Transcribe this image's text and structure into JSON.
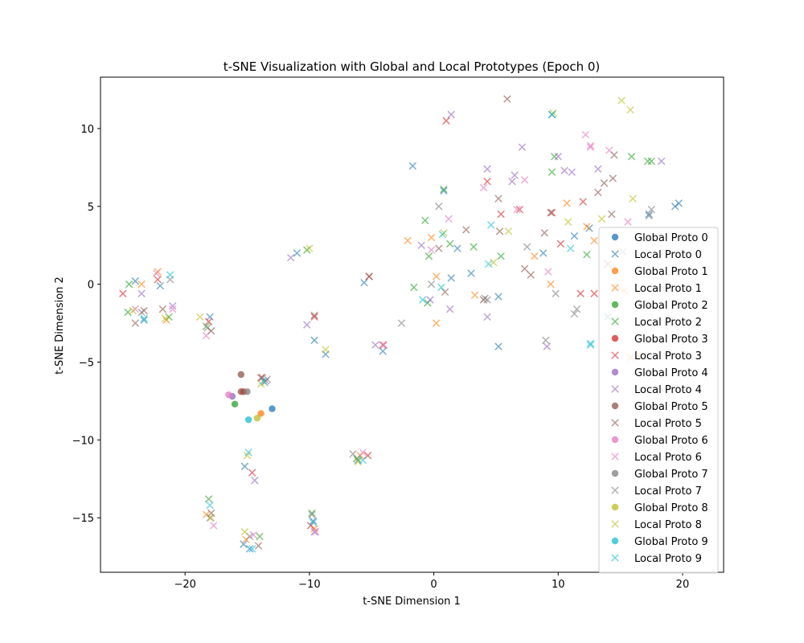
{
  "chart_data": {
    "type": "scatter",
    "title": "t-SNE Visualization with Global and Local Prototypes (Epoch 0)",
    "xlabel": "t-SNE Dimension 1",
    "ylabel": "t-SNE Dimension 2",
    "xlim": [
      -26.8,
      23.3
    ],
    "ylim": [
      -18.5,
      13.3
    ],
    "xticks": [
      -20,
      -10,
      0,
      10,
      20
    ],
    "yticks": [
      -15,
      -10,
      -5,
      0,
      5,
      10
    ],
    "grid": false,
    "legend_position": "right",
    "series": [
      {
        "name": "Global Proto 0",
        "marker": "circle",
        "color": "#1f77b4",
        "points": [
          [
            -13.0,
            -8.0
          ]
        ]
      },
      {
        "name": "Local Proto 0",
        "marker": "x",
        "color": "#1f77b4",
        "points": [
          [
            -24.0,
            0.2
          ],
          [
            -22.0,
            -0.1
          ],
          [
            -23.3,
            -2.3
          ],
          [
            -18.0,
            -2.1
          ],
          [
            -11.0,
            2.0
          ],
          [
            -9.6,
            -3.6
          ],
          [
            -8.7,
            -4.5
          ],
          [
            -4.1,
            -4.3
          ],
          [
            -5.6,
            0.1
          ],
          [
            -1.7,
            7.6
          ],
          [
            0.8,
            6.0
          ],
          [
            1.4,
            0.4
          ],
          [
            1.9,
            2.3
          ],
          [
            3.0,
            0.7
          ],
          [
            5.2,
            -0.8
          ],
          [
            5.2,
            -4.0
          ],
          [
            9.5,
            10.9
          ],
          [
            8.8,
            2.0
          ],
          [
            11.3,
            3.1
          ],
          [
            12.5,
            3.6
          ],
          [
            19.4,
            5.0
          ],
          [
            19.7,
            5.2
          ],
          [
            17.3,
            4.5
          ],
          [
            14.0,
            -2.1
          ],
          [
            -14.8,
            -17.0
          ],
          [
            -15.3,
            -16.7
          ],
          [
            -9.7,
            -15.2
          ],
          [
            -15.2,
            -11.7
          ],
          [
            -6.1,
            -11.3
          ]
        ]
      },
      {
        "name": "Global Proto 1",
        "marker": "circle",
        "color": "#ff7f0e",
        "points": [
          [
            -13.9,
            -8.3
          ]
        ]
      },
      {
        "name": "Local Proto 1",
        "marker": "x",
        "color": "#ff7f0e",
        "points": [
          [
            -22.2,
            0.8
          ],
          [
            -21.5,
            -2.3
          ],
          [
            -23.5,
            0.0
          ],
          [
            -2.1,
            2.8
          ],
          [
            -0.2,
            3.0
          ],
          [
            0.2,
            0.5
          ],
          [
            0.2,
            -2.5
          ],
          [
            3.3,
            -0.7
          ],
          [
            8.1,
            1.8
          ],
          [
            9.4,
            0.0
          ],
          [
            10.7,
            5.2
          ],
          [
            12.3,
            3.7
          ],
          [
            12.9,
            2.8
          ],
          [
            15.3,
            -0.4
          ],
          [
            16.6,
            -4.6
          ],
          [
            15.8,
            -4.7
          ],
          [
            -18.3,
            -14.8
          ],
          [
            -15.1,
            -16.4
          ],
          [
            -9.6,
            -15.7
          ],
          [
            -5.9,
            -11.0
          ]
        ]
      },
      {
        "name": "Global Proto 2",
        "marker": "circle",
        "color": "#2ca02c",
        "points": [
          [
            -16.0,
            -7.7
          ]
        ]
      },
      {
        "name": "Local Proto 2",
        "marker": "x",
        "color": "#2ca02c",
        "points": [
          [
            -24.5,
            0.0
          ],
          [
            -24.6,
            -1.8
          ],
          [
            -21.3,
            -2.1
          ],
          [
            -18.3,
            -2.7
          ],
          [
            -10.2,
            2.2
          ],
          [
            -1.6,
            -0.2
          ],
          [
            -0.7,
            4.1
          ],
          [
            0.8,
            6.1
          ],
          [
            1.3,
            2.6
          ],
          [
            3.2,
            2.4
          ],
          [
            5.4,
            1.8
          ],
          [
            9.5,
            7.2
          ],
          [
            9.7,
            8.2
          ],
          [
            12.3,
            1.9
          ],
          [
            15.9,
            8.2
          ],
          [
            17.2,
            7.9
          ],
          [
            17.5,
            7.9
          ],
          [
            -18.1,
            -13.8
          ],
          [
            -14.0,
            -16.2
          ],
          [
            -9.8,
            -14.7
          ],
          [
            -6.2,
            -11.2
          ],
          [
            -13.6,
            -6.3
          ],
          [
            -0.5,
            -1.2
          ],
          [
            -0.4,
            1.8
          ]
        ]
      },
      {
        "name": "Global Proto 3",
        "marker": "circle",
        "color": "#d62728",
        "points": [
          [
            -15.3,
            -6.9
          ]
        ]
      },
      {
        "name": "Local Proto 3",
        "marker": "x",
        "color": "#d62728",
        "points": [
          [
            -25.0,
            -0.6
          ],
          [
            -22.2,
            0.3
          ],
          [
            -18.1,
            -2.4
          ],
          [
            -9.6,
            -2.1
          ],
          [
            -5.2,
            0.5
          ],
          [
            -4.1,
            -3.9
          ],
          [
            1.0,
            10.5
          ],
          [
            4.3,
            6.6
          ],
          [
            5.4,
            4.5
          ],
          [
            6.9,
            4.8
          ],
          [
            9.5,
            4.6
          ],
          [
            10.2,
            2.6
          ],
          [
            11.8,
            -0.6
          ],
          [
            12.0,
            5.3
          ],
          [
            14.0,
            1.3
          ],
          [
            12.9,
            -0.6
          ],
          [
            -14.6,
            -12.1
          ],
          [
            -9.9,
            -15.5
          ],
          [
            -5.3,
            -11.0
          ],
          [
            -13.8,
            -6.0
          ]
        ]
      },
      {
        "name": "Global Proto 4",
        "marker": "circle",
        "color": "#9467bd",
        "points": [
          [
            -16.2,
            -7.2
          ]
        ]
      },
      {
        "name": "Local Proto 4",
        "marker": "x",
        "color": "#9467bd",
        "points": [
          [
            -23.5,
            -0.6
          ],
          [
            -21.0,
            -1.4
          ],
          [
            -11.5,
            1.7
          ],
          [
            -10.2,
            -2.6
          ],
          [
            -4.7,
            -3.9
          ],
          [
            -1.0,
            2.5
          ],
          [
            -0.3,
            -1.0
          ],
          [
            1.4,
            10.9
          ],
          [
            4.3,
            7.4
          ],
          [
            4.3,
            -2.1
          ],
          [
            6.3,
            6.6
          ],
          [
            6.5,
            7.0
          ],
          [
            7.1,
            8.8
          ],
          [
            9.1,
            -4.0
          ],
          [
            10.0,
            8.2
          ],
          [
            10.5,
            7.3
          ],
          [
            11.1,
            7.2
          ],
          [
            13.2,
            7.4
          ],
          [
            18.3,
            7.9
          ],
          [
            -14.4,
            -12.6
          ],
          [
            -9.6,
            -15.9
          ],
          [
            -13.5,
            -6.2
          ],
          [
            1.3,
            -1.6
          ]
        ]
      },
      {
        "name": "Global Proto 5",
        "marker": "circle",
        "color": "#8c564b",
        "points": [
          [
            -15.5,
            -5.8
          ],
          [
            -15.5,
            -6.9
          ]
        ]
      },
      {
        "name": "Local Proto 5",
        "marker": "x",
        "color": "#8c564b",
        "points": [
          [
            -24.0,
            -2.5
          ],
          [
            -23.3,
            -1.7
          ],
          [
            -21.8,
            -1.6
          ],
          [
            -17.9,
            -3.0
          ],
          [
            -9.6,
            -2.0
          ],
          [
            -5.2,
            0.5
          ],
          [
            0.4,
            2.3
          ],
          [
            0.9,
            -0.5
          ],
          [
            2.6,
            3.5
          ],
          [
            5.2,
            5.5
          ],
          [
            5.3,
            3.4
          ],
          [
            5.9,
            11.9
          ],
          [
            7.3,
            1.0
          ],
          [
            7.8,
            0.6
          ],
          [
            8.9,
            3.3
          ],
          [
            9.4,
            4.6
          ],
          [
            13.2,
            5.9
          ],
          [
            13.7,
            6.5
          ],
          [
            14.3,
            4.5
          ],
          [
            14.4,
            6.8
          ],
          [
            14.5,
            8.3
          ],
          [
            -17.9,
            -14.7
          ],
          [
            -14.1,
            -16.8
          ],
          [
            -13.9,
            -6.0
          ],
          [
            4.0,
            -1.0
          ]
        ]
      },
      {
        "name": "Global Proto 6",
        "marker": "circle",
        "color": "#e377c2",
        "points": [
          [
            -16.5,
            -7.1
          ]
        ]
      },
      {
        "name": "Local Proto 6",
        "marker": "x",
        "color": "#e377c2",
        "points": [
          [
            -24.0,
            -1.6
          ],
          [
            -22.3,
            0.7
          ],
          [
            -21.0,
            -1.6
          ],
          [
            -18.3,
            -3.3
          ],
          [
            -4.0,
            -3.9
          ],
          [
            -0.2,
            2.2
          ],
          [
            1.2,
            4.2
          ],
          [
            4.0,
            6.2
          ],
          [
            6.7,
            4.8
          ],
          [
            7.3,
            6.7
          ],
          [
            9.2,
            0.8
          ],
          [
            12.2,
            9.6
          ],
          [
            12.6,
            8.9
          ],
          [
            12.6,
            8.8
          ],
          [
            14.1,
            8.6
          ],
          [
            15.6,
            4.0
          ],
          [
            -17.7,
            -15.5
          ],
          [
            -14.5,
            -16.1
          ],
          [
            -9.5,
            -15.9
          ],
          [
            -5.7,
            -10.8
          ]
        ]
      },
      {
        "name": "Global Proto 7",
        "marker": "circle",
        "color": "#7f7f7f",
        "points": [
          [
            -15.0,
            -6.9
          ]
        ]
      },
      {
        "name": "Local Proto 7",
        "marker": "x",
        "color": "#7f7f7f",
        "points": [
          [
            -23.5,
            -1.8
          ],
          [
            -21.2,
            0.3
          ],
          [
            -18.2,
            -2.8
          ],
          [
            -2.6,
            -2.5
          ],
          [
            0.4,
            5.0
          ],
          [
            -0.2,
            0.0
          ],
          [
            4.3,
            -1.0
          ],
          [
            4.1,
            -0.9
          ],
          [
            7.5,
            2.4
          ],
          [
            9.0,
            -3.6
          ],
          [
            9.8,
            -0.6
          ],
          [
            11.5,
            -1.6
          ],
          [
            11.3,
            -1.9
          ],
          [
            15.2,
            2.1
          ],
          [
            17.3,
            4.4
          ],
          [
            17.5,
            4.8
          ],
          [
            -18.0,
            -15.0
          ],
          [
            -14.8,
            -16.2
          ],
          [
            -9.8,
            -14.8
          ],
          [
            -6.5,
            -10.9
          ],
          [
            -13.4,
            -6.1
          ]
        ]
      },
      {
        "name": "Global Proto 8",
        "marker": "circle",
        "color": "#bcbd22",
        "points": [
          [
            -14.2,
            -8.6
          ]
        ]
      },
      {
        "name": "Local Proto 8",
        "marker": "x",
        "color": "#bcbd22",
        "points": [
          [
            -24.2,
            -1.7
          ],
          [
            -21.6,
            -2.2
          ],
          [
            -18.8,
            -2.1
          ],
          [
            -10.0,
            2.3
          ],
          [
            -8.7,
            -4.2
          ],
          [
            0.8,
            3.3
          ],
          [
            4.8,
            1.4
          ],
          [
            6.0,
            3.4
          ],
          [
            9.6,
            11.0
          ],
          [
            10.8,
            4.0
          ],
          [
            13.5,
            4.2
          ],
          [
            15.1,
            11.8
          ],
          [
            15.8,
            11.2
          ],
          [
            16.0,
            5.5
          ],
          [
            -17.9,
            -15.0
          ],
          [
            -15.2,
            -15.9
          ],
          [
            -15.0,
            -11.0
          ],
          [
            -6.1,
            -11.4
          ],
          [
            -13.9,
            -6.4
          ]
        ]
      },
      {
        "name": "Global Proto 9",
        "marker": "circle",
        "color": "#17becf",
        "points": [
          [
            -14.9,
            -8.7
          ]
        ]
      },
      {
        "name": "Local Proto 9",
        "marker": "x",
        "color": "#17becf",
        "points": [
          [
            -21.2,
            0.6
          ],
          [
            -23.3,
            -2.2
          ],
          [
            -0.9,
            -1.0
          ],
          [
            0.6,
            -0.2
          ],
          [
            0.7,
            3.2
          ],
          [
            4.4,
            1.3
          ],
          [
            4.6,
            3.8
          ],
          [
            9.5,
            10.9
          ],
          [
            11.0,
            2.3
          ],
          [
            12.6,
            -3.8
          ],
          [
            12.6,
            -3.9
          ],
          [
            -18.0,
            -14.2
          ],
          [
            -14.9,
            -10.8
          ],
          [
            -14.6,
            -17.0
          ],
          [
            -9.7,
            -15.3
          ],
          [
            -5.7,
            -11.3
          ],
          [
            -13.7,
            -6.2
          ]
        ]
      }
    ]
  }
}
